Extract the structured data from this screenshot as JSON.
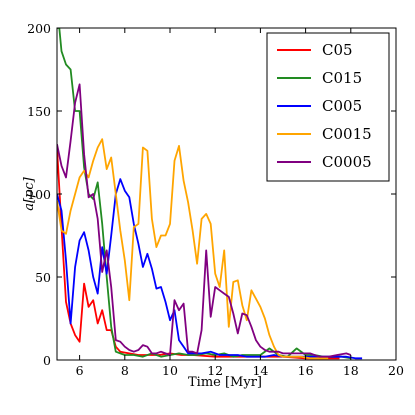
{
  "chart_data": {
    "type": "line",
    "xlabel": "Time [Myr]",
    "ylabel": "a[pc]",
    "xlim": [
      5,
      20
    ],
    "ylim": [
      0,
      200
    ],
    "xticks": [
      6,
      8,
      10,
      12,
      14,
      16,
      18,
      20
    ],
    "yticks": [
      0,
      50,
      100,
      150,
      200
    ],
    "legend_position": "top-right",
    "grid": false,
    "series": [
      {
        "name": "C05",
        "color": "#ff0000",
        "points": [
          [
            5.0,
            128
          ],
          [
            5.2,
            80
          ],
          [
            5.4,
            35
          ],
          [
            5.6,
            22
          ],
          [
            5.8,
            15
          ],
          [
            6.0,
            11
          ],
          [
            6.2,
            46
          ],
          [
            6.4,
            32
          ],
          [
            6.6,
            36
          ],
          [
            6.8,
            22
          ],
          [
            7.0,
            30
          ],
          [
            7.2,
            18
          ],
          [
            7.4,
            18
          ],
          [
            7.6,
            8
          ],
          [
            7.8,
            5
          ],
          [
            8.2,
            4
          ],
          [
            8.6,
            3
          ],
          [
            9.0,
            3
          ],
          [
            9.5,
            3
          ],
          [
            10.0,
            4
          ],
          [
            10.5,
            3
          ],
          [
            11.0,
            3
          ],
          [
            12.0,
            2
          ],
          [
            13.0,
            2
          ],
          [
            14.0,
            2
          ],
          [
            15.0,
            2
          ],
          [
            16.0,
            1
          ],
          [
            17.0,
            1
          ],
          [
            17.5,
            1
          ]
        ]
      },
      {
        "name": "C015",
        "color": "#228b22",
        "points": [
          [
            5.0,
            200
          ],
          [
            5.1,
            200
          ],
          [
            5.2,
            186
          ],
          [
            5.4,
            178
          ],
          [
            5.6,
            175
          ],
          [
            5.8,
            150
          ],
          [
            6.0,
            150
          ],
          [
            6.2,
            116
          ],
          [
            6.4,
            100
          ],
          [
            6.6,
            97
          ],
          [
            6.8,
            107
          ],
          [
            7.0,
            82
          ],
          [
            7.2,
            50
          ],
          [
            7.4,
            20
          ],
          [
            7.6,
            5
          ],
          [
            7.8,
            4
          ],
          [
            8.0,
            3
          ],
          [
            8.4,
            3
          ],
          [
            8.8,
            2
          ],
          [
            9.2,
            4
          ],
          [
            9.6,
            2
          ],
          [
            10.0,
            3
          ],
          [
            10.4,
            4
          ],
          [
            10.8,
            3
          ],
          [
            11.2,
            3
          ],
          [
            11.6,
            4
          ],
          [
            12.0,
            3
          ],
          [
            12.4,
            4
          ],
          [
            12.8,
            2
          ],
          [
            13.2,
            3
          ],
          [
            13.6,
            3
          ],
          [
            14.0,
            3
          ],
          [
            14.4,
            7
          ],
          [
            14.8,
            3
          ],
          [
            15.2,
            2
          ],
          [
            15.6,
            7
          ],
          [
            16.0,
            3
          ],
          [
            16.4,
            3
          ],
          [
            16.8,
            2
          ],
          [
            17.2,
            2
          ],
          [
            17.6,
            2
          ],
          [
            18.0,
            1
          ]
        ]
      },
      {
        "name": "C005",
        "color": "#0000ff",
        "points": [
          [
            5.0,
            100
          ],
          [
            5.2,
            90
          ],
          [
            5.4,
            60
          ],
          [
            5.6,
            22
          ],
          [
            5.8,
            56
          ],
          [
            6.0,
            72
          ],
          [
            6.2,
            77
          ],
          [
            6.4,
            66
          ],
          [
            6.6,
            50
          ],
          [
            6.8,
            40
          ],
          [
            7.0,
            68
          ],
          [
            7.2,
            52
          ],
          [
            7.4,
            75
          ],
          [
            7.6,
            100
          ],
          [
            7.8,
            109
          ],
          [
            8.0,
            102
          ],
          [
            8.2,
            98
          ],
          [
            8.4,
            82
          ],
          [
            8.6,
            70
          ],
          [
            8.8,
            56
          ],
          [
            9.0,
            64
          ],
          [
            9.2,
            55
          ],
          [
            9.4,
            43
          ],
          [
            9.6,
            44
          ],
          [
            9.8,
            35
          ],
          [
            10.0,
            24
          ],
          [
            10.2,
            30
          ],
          [
            10.4,
            12
          ],
          [
            10.6,
            8
          ],
          [
            10.8,
            4
          ],
          [
            11.0,
            4
          ],
          [
            11.4,
            4
          ],
          [
            11.8,
            5
          ],
          [
            12.2,
            3
          ],
          [
            12.6,
            3
          ],
          [
            13.0,
            3
          ],
          [
            13.4,
            2
          ],
          [
            13.8,
            2
          ],
          [
            14.2,
            2
          ],
          [
            14.6,
            3
          ],
          [
            15.0,
            2
          ],
          [
            15.4,
            2
          ],
          [
            15.8,
            2
          ],
          [
            16.2,
            2
          ],
          [
            16.6,
            2
          ],
          [
            17.0,
            2
          ],
          [
            17.4,
            2
          ],
          [
            17.8,
            2
          ],
          [
            18.2,
            1
          ],
          [
            18.5,
            1
          ]
        ]
      },
      {
        "name": "C0015",
        "color": "#ffa500",
        "points": [
          [
            5.0,
            96
          ],
          [
            5.2,
            78
          ],
          [
            5.4,
            76
          ],
          [
            5.6,
            90
          ],
          [
            5.8,
            100
          ],
          [
            6.0,
            110
          ],
          [
            6.2,
            114
          ],
          [
            6.4,
            110
          ],
          [
            6.6,
            120
          ],
          [
            6.8,
            128
          ],
          [
            7.0,
            133
          ],
          [
            7.2,
            115
          ],
          [
            7.4,
            122
          ],
          [
            7.6,
            100
          ],
          [
            7.8,
            78
          ],
          [
            8.0,
            60
          ],
          [
            8.2,
            36
          ],
          [
            8.4,
            80
          ],
          [
            8.6,
            82
          ],
          [
            8.8,
            128
          ],
          [
            9.0,
            126
          ],
          [
            9.2,
            85
          ],
          [
            9.4,
            68
          ],
          [
            9.6,
            75
          ],
          [
            9.8,
            75
          ],
          [
            10.0,
            82
          ],
          [
            10.2,
            120
          ],
          [
            10.4,
            129
          ],
          [
            10.6,
            108
          ],
          [
            10.8,
            95
          ],
          [
            11.0,
            78
          ],
          [
            11.2,
            58
          ],
          [
            11.4,
            85
          ],
          [
            11.6,
            88
          ],
          [
            11.8,
            82
          ],
          [
            12.0,
            52
          ],
          [
            12.2,
            44
          ],
          [
            12.4,
            66
          ],
          [
            12.6,
            20
          ],
          [
            12.8,
            47
          ],
          [
            13.0,
            48
          ],
          [
            13.2,
            33
          ],
          [
            13.4,
            24
          ],
          [
            13.6,
            42
          ],
          [
            13.8,
            37
          ],
          [
            14.0,
            32
          ],
          [
            14.2,
            25
          ],
          [
            14.4,
            15
          ],
          [
            14.6,
            8
          ],
          [
            14.8,
            3
          ],
          [
            15.0,
            2
          ],
          [
            15.4,
            2
          ],
          [
            15.8,
            2
          ],
          [
            16.2,
            1
          ],
          [
            16.6,
            1
          ],
          [
            17.0,
            1
          ]
        ]
      },
      {
        "name": "C0005",
        "color": "#800080",
        "points": [
          [
            5.0,
            130
          ],
          [
            5.2,
            117
          ],
          [
            5.4,
            110
          ],
          [
            5.6,
            132
          ],
          [
            5.8,
            155
          ],
          [
            6.0,
            166
          ],
          [
            6.2,
            124
          ],
          [
            6.4,
            98
          ],
          [
            6.6,
            100
          ],
          [
            6.8,
            85
          ],
          [
            7.0,
            53
          ],
          [
            7.2,
            66
          ],
          [
            7.4,
            44
          ],
          [
            7.6,
            12
          ],
          [
            7.8,
            11
          ],
          [
            8.0,
            8
          ],
          [
            8.2,
            6
          ],
          [
            8.4,
            5
          ],
          [
            8.6,
            6
          ],
          [
            8.8,
            9
          ],
          [
            9.0,
            8
          ],
          [
            9.2,
            4
          ],
          [
            9.4,
            4
          ],
          [
            9.6,
            5
          ],
          [
            9.8,
            4
          ],
          [
            10.0,
            3
          ],
          [
            10.2,
            36
          ],
          [
            10.4,
            30
          ],
          [
            10.6,
            34
          ],
          [
            10.8,
            5
          ],
          [
            11.0,
            5
          ],
          [
            11.2,
            4
          ],
          [
            11.4,
            18
          ],
          [
            11.6,
            66
          ],
          [
            11.8,
            26
          ],
          [
            12.0,
            44
          ],
          [
            12.2,
            42
          ],
          [
            12.4,
            40
          ],
          [
            12.6,
            38
          ],
          [
            12.8,
            28
          ],
          [
            13.0,
            16
          ],
          [
            13.2,
            28
          ],
          [
            13.4,
            27
          ],
          [
            13.6,
            20
          ],
          [
            13.8,
            12
          ],
          [
            14.0,
            8
          ],
          [
            14.2,
            6
          ],
          [
            14.4,
            5
          ],
          [
            14.6,
            5
          ],
          [
            14.8,
            5
          ],
          [
            15.0,
            4
          ],
          [
            15.4,
            4
          ],
          [
            15.8,
            4
          ],
          [
            16.2,
            4
          ],
          [
            16.6,
            2
          ],
          [
            17.0,
            2
          ],
          [
            17.4,
            3
          ],
          [
            17.8,
            4
          ],
          [
            18.0,
            3
          ]
        ]
      }
    ]
  }
}
